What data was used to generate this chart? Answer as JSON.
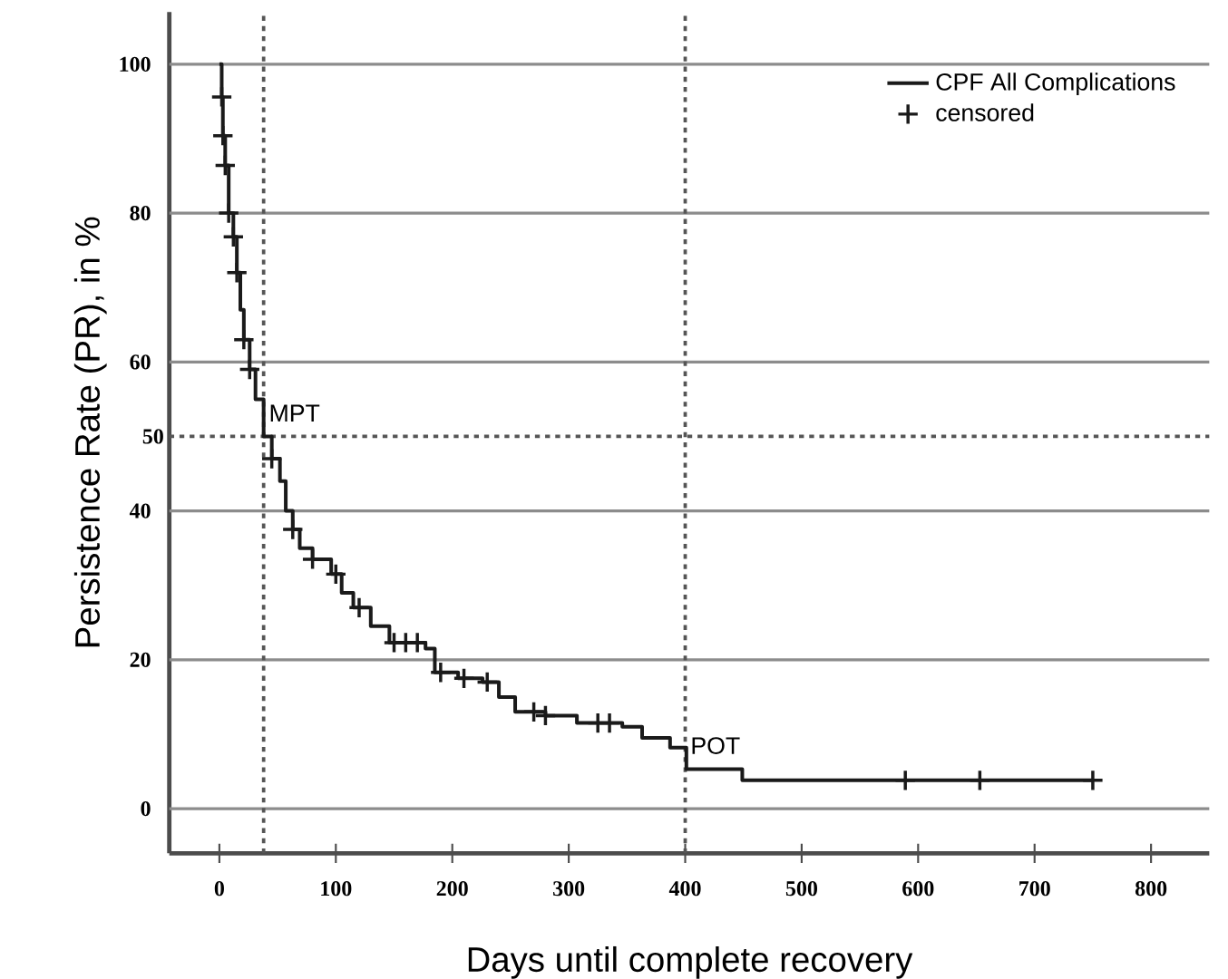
{
  "chart_data": {
    "type": "step",
    "xlabel": "Days until complete recovery",
    "ylabel": "Persistence Rate (PR), in %",
    "xlim": [
      -43,
      850
    ],
    "ylim": [
      -6,
      107
    ],
    "xticks": [
      0,
      100,
      200,
      300,
      400,
      500,
      600,
      700,
      800
    ],
    "yticks": [
      0,
      20,
      40,
      60,
      80,
      100
    ],
    "grid": "y",
    "legend": "top right",
    "series": [
      {
        "name": "CPF All Complications",
        "type": "step",
        "color": "#1a1a1a",
        "x": [
          0,
          2,
          3,
          5,
          8,
          12,
          15,
          18,
          21,
          26,
          31,
          38,
          45,
          52,
          57,
          63,
          69,
          80,
          96,
          105,
          115,
          130,
          146,
          177,
          185,
          205,
          226,
          240,
          254,
          280,
          307,
          346,
          363,
          387,
          401,
          449,
          750
        ],
        "values": [
          100,
          95.6,
          90.4,
          86.4,
          80,
          76.8,
          72,
          67,
          63,
          59,
          55,
          50,
          47,
          44,
          40,
          37.5,
          35,
          33.5,
          31.5,
          29,
          27,
          24.5,
          22.3,
          21.5,
          18.3,
          17.5,
          17,
          15,
          13,
          12.5,
          11.5,
          11,
          9.5,
          8.2,
          5.3,
          3.8,
          3.8
        ]
      },
      {
        "name": "censored",
        "type": "scatter",
        "marker": "cross",
        "color": "#1a1a1a",
        "x": [
          2,
          3,
          5,
          8,
          12,
          15,
          21,
          26,
          45,
          63,
          80,
          100,
          120,
          150,
          160,
          170,
          190,
          210,
          230,
          270,
          280,
          325,
          335,
          589,
          653,
          750
        ],
        "values": [
          95.6,
          90.4,
          86.4,
          80,
          76.8,
          72,
          63,
          59,
          47,
          37.5,
          33.5,
          31.5,
          27,
          22.3,
          22.3,
          22.3,
          18.3,
          17.5,
          17,
          13,
          12.5,
          11.5,
          11.5,
          3.8,
          3.8,
          3.8
        ]
      }
    ],
    "ref_lines": [
      {
        "axis": "y",
        "value": 50,
        "label": "50",
        "color": "#555555",
        "line_style": "dotted"
      },
      {
        "axis": "x",
        "value": 38,
        "color": "#555555",
        "line_style": "dotted"
      },
      {
        "axis": "x",
        "value": 400,
        "color": "#555555",
        "line_style": "dotted"
      }
    ],
    "annotations": [
      {
        "text": "MPT",
        "x": 38,
        "y": 50
      },
      {
        "text": "POT",
        "x": 400,
        "y": 5.3
      }
    ]
  }
}
